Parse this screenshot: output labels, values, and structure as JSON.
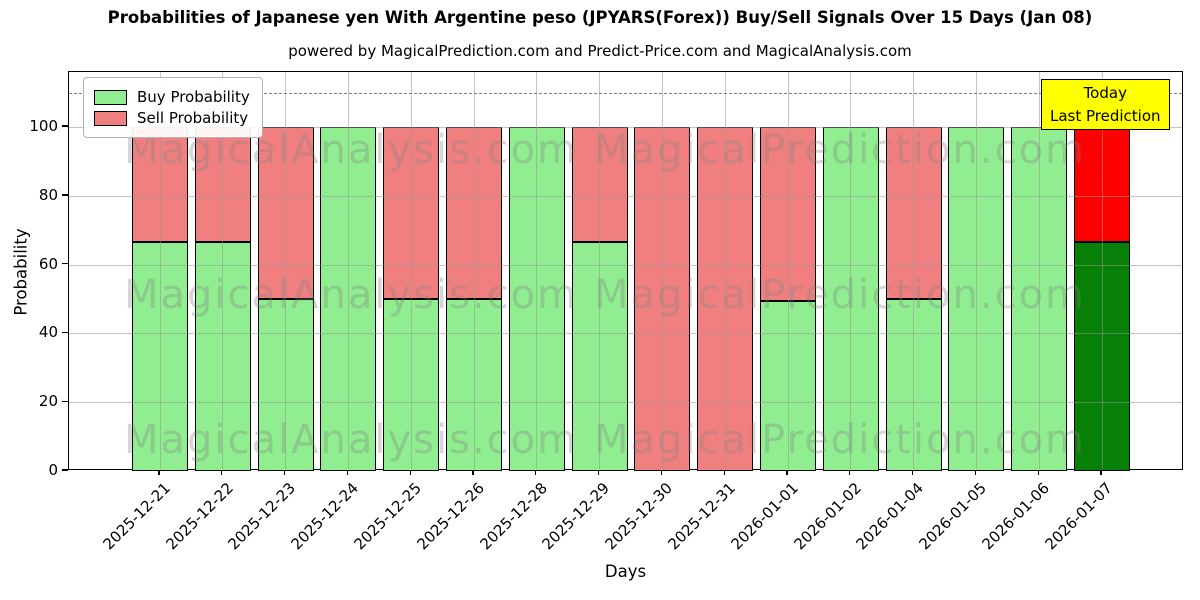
{
  "chart_data": {
    "type": "bar",
    "stacked": true,
    "title": "Probabilities of Japanese yen With Argentine peso (JPYARS(Forex)) Buy/Sell Signals Over 15 Days (Jan 08)",
    "subtitle": "powered by MagicalPrediction.com and Predict-Price.com and MagicalAnalysis.com",
    "xlabel": "Days",
    "ylabel": "Probability",
    "ylim": [
      0,
      116
    ],
    "yticks": [
      0,
      20,
      40,
      60,
      80,
      100
    ],
    "dashed_line_y": 110,
    "grid": true,
    "legend_position": "upper-left",
    "categories": [
      "2025-12-21",
      "2025-12-22",
      "2025-12-23",
      "2025-12-24",
      "2025-12-25",
      "2025-12-26",
      "2025-12-28",
      "2025-12-29",
      "2025-12-30",
      "2025-12-31",
      "2026-01-01",
      "2026-01-02",
      "2026-01-04",
      "2026-01-05",
      "2026-01-06",
      "2026-01-07"
    ],
    "series": [
      {
        "name": "Buy Probability",
        "color": "#90EE90",
        "today_color": "#068006",
        "values": [
          66.7,
          66.7,
          50,
          100,
          50,
          50,
          100,
          66.7,
          0,
          0,
          49.5,
          100,
          50,
          100,
          100,
          66.7
        ]
      },
      {
        "name": "Sell Probability",
        "color": "#F08080",
        "today_color": "#FF0000",
        "values": [
          33.3,
          33.3,
          50,
          0,
          50,
          50,
          0,
          33.3,
          100,
          100,
          50.5,
          0,
          50,
          0,
          0,
          33.3
        ]
      }
    ],
    "today_index": 15,
    "annotation": {
      "line1": "Today",
      "line2": "Last Prediction",
      "bg_color": "#FFFF00"
    },
    "watermarks": [
      "MagicalAnalysis.com",
      "MagicalPrediction.com"
    ],
    "bar_edge_color": "#000000"
  }
}
